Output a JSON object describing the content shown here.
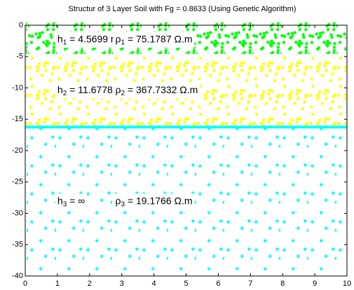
{
  "chart_data": {
    "type": "layers",
    "title": "Structur of 3 Layer Soil with Fg = 0.8633 (Using Genetic Algorithm)",
    "xlim": [
      0,
      10
    ],
    "ylim": [
      -40,
      0
    ],
    "xticks": [
      0,
      1,
      2,
      3,
      4,
      5,
      6,
      7,
      8,
      9,
      10
    ],
    "yticks": [
      0,
      -5,
      -10,
      -15,
      -20,
      -25,
      -30,
      -35,
      -40
    ],
    "layers": [
      {
        "thickness": 4.5699,
        "color": "#00ff00",
        "h": {
          "symbol": "h",
          "index": "1",
          "text": " = 4.5699 m"
        },
        "rho": {
          "symbol": "ρ",
          "index": "1",
          "text": " = 75.1787 Ω.m"
        }
      },
      {
        "thickness": 11.6778,
        "color": "#ffff00",
        "h": {
          "symbol": "h",
          "index": "2",
          "text": " = 11.6778 m"
        },
        "rho": {
          "symbol": "ρ",
          "index": "2",
          "text": " = 367.7332 Ω.m"
        }
      },
      {
        "color": "#00ffff",
        "h": {
          "symbol": "h",
          "index": "3",
          "text": " = ∞"
        },
        "rho": {
          "symbol": "ρ",
          "index": "3",
          "text": " = 19.1766 Ω.m"
        }
      }
    ]
  }
}
